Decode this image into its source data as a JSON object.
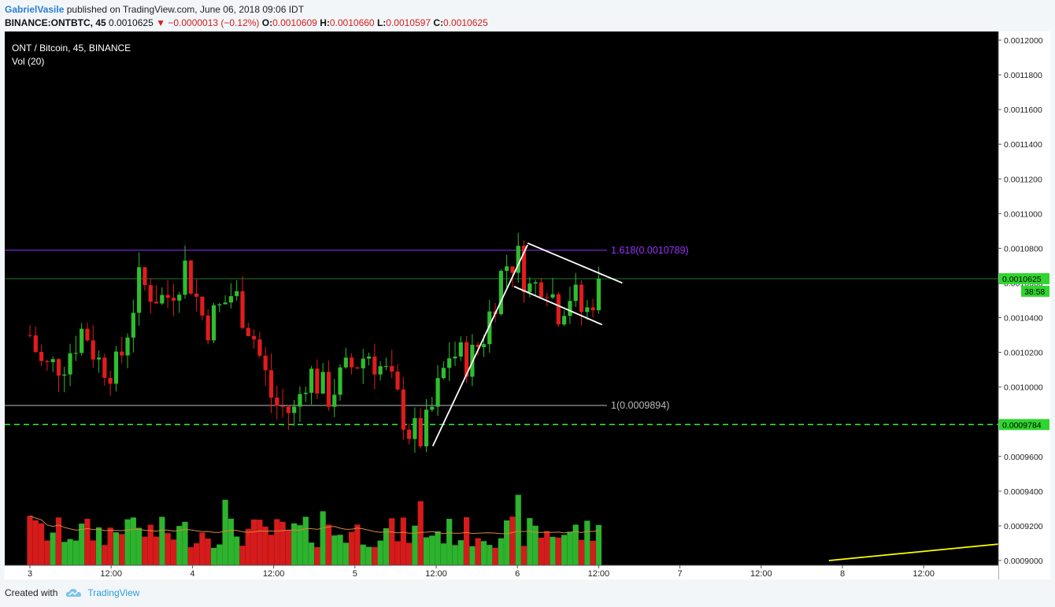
{
  "header": {
    "author": "GabrielVasile",
    "published": "published on TradingView.com, June 06, 2018 09:06 IDT",
    "symbol": "BINANCE:ONTBTC, 45",
    "last": "0.0010625",
    "change": "−0.0000013 (−0.12%)",
    "o_label": "O:",
    "o_value": "0.0010609",
    "h_label": "H:",
    "h_value": "0.0010660",
    "l_label": "L:",
    "l_value": "0.0010597",
    "c_label": "C:",
    "c_value": "0.0010625"
  },
  "legend": {
    "title": "ONT / Bitcoin, 45, BINANCE",
    "volume": "Vol (20)"
  },
  "footer": {
    "created_with": "Created with",
    "brand": "TradingView"
  },
  "colors": {
    "up": "#2fbd2f",
    "down": "#e01c1c",
    "background": "#000000",
    "fib_1618": "#9b30ff",
    "fib_1": "#bbbbbb",
    "dashed_support": "#33ee33",
    "trendline": "#ffff00"
  },
  "chart_data": {
    "type": "candlestick",
    "y_ticks": [
      "0.0012000",
      "0.0011800",
      "0.0011600",
      "0.0011400",
      "0.0011200",
      "0.0011000",
      "0.0010800",
      "0.0010600",
      "0.0010400",
      "0.0010200",
      "0.0010000",
      "0.0009800",
      "0.0009600",
      "0.0009400",
      "0.0009200",
      "0.0009000"
    ],
    "ylim": [
      0.0009,
      0.0012
    ],
    "x_ticks": [
      {
        "label": "3",
        "t": 0
      },
      {
        "label": "12:00",
        "t": 12
      },
      {
        "label": "4",
        "t": 24
      },
      {
        "label": "12:00",
        "t": 36
      },
      {
        "label": "5",
        "t": 48
      },
      {
        "label": "12:00",
        "t": 60
      },
      {
        "label": "6",
        "t": 72
      },
      {
        "label": "12:00",
        "t": 84
      },
      {
        "label": "7",
        "t": 96
      },
      {
        "label": "12:00",
        "t": 108
      },
      {
        "label": "8",
        "t": 120
      },
      {
        "label": "12:00",
        "t": 132
      }
    ],
    "price_tags": [
      {
        "label": "0.0010625",
        "value": 0.0010625,
        "kind": "last"
      },
      {
        "label": "38:58",
        "kind": "countdown"
      },
      {
        "label": "0.0009784",
        "value": 0.0009784,
        "kind": "support"
      }
    ],
    "levels": [
      {
        "label": "1.618(0.0010789)",
        "value": 0.0010789,
        "kind": "fib_1618"
      },
      {
        "label": "1(0.0009894)",
        "value": 0.0009894,
        "kind": "fib_1"
      },
      {
        "value": 0.0009784,
        "kind": "dashed_support"
      },
      {
        "value": 0.0010625,
        "kind": "last_price"
      }
    ],
    "candle_count": 100,
    "ohlc_anchors": [
      {
        "t": 0,
        "close": 0.00103
      },
      {
        "t": 2,
        "close": 0.00101
      },
      {
        "t": 5,
        "close": 0.001015
      },
      {
        "t": 8,
        "close": 0.001035
      },
      {
        "t": 10,
        "close": 0.001015
      },
      {
        "t": 13,
        "close": 0.00101
      },
      {
        "t": 16,
        "close": 0.00106
      },
      {
        "t": 20,
        "close": 0.00105
      },
      {
        "t": 23,
        "close": 0.00107
      },
      {
        "t": 26,
        "close": 0.001035
      },
      {
        "t": 30,
        "close": 0.001055
      },
      {
        "t": 33,
        "close": 0.00103
      },
      {
        "t": 36,
        "close": 0.00099
      },
      {
        "t": 39,
        "close": 0.000985
      },
      {
        "t": 41,
        "close": 0.00101
      },
      {
        "t": 44,
        "close": 0.000995
      },
      {
        "t": 47,
        "close": 0.00101
      },
      {
        "t": 50,
        "close": 0.00102
      },
      {
        "t": 53,
        "close": 0.001005
      },
      {
        "t": 56,
        "close": 0.000975
      },
      {
        "t": 58,
        "close": 0.00097
      },
      {
        "t": 60,
        "close": 0.000995
      },
      {
        "t": 62,
        "close": 0.00102
      },
      {
        "t": 65,
        "close": 0.001015
      },
      {
        "t": 67,
        "close": 0.00103
      },
      {
        "t": 70,
        "close": 0.00107
      },
      {
        "t": 72,
        "close": 0.001075
      },
      {
        "t": 74,
        "close": 0.001055
      },
      {
        "t": 76,
        "close": 0.001065
      },
      {
        "t": 78,
        "close": 0.001045
      },
      {
        "t": 80,
        "close": 0.001055
      },
      {
        "t": 82,
        "close": 0.00104
      },
      {
        "t": 84,
        "close": 0.0010625
      }
    ],
    "drawings": [
      {
        "kind": "impulse_line",
        "from": {
          "t": 59.5,
          "value": 0.000966
        },
        "to": {
          "t": 73.5,
          "value": 0.001082
        }
      },
      {
        "kind": "channel_top",
        "from": {
          "t": 73.5,
          "value": 0.001083
        },
        "to": {
          "t": 87.5,
          "value": 0.00106
        }
      },
      {
        "kind": "channel_bottom",
        "from": {
          "t": 71.5,
          "value": 0.001058
        },
        "to": {
          "t": 84.5,
          "value": 0.001036
        }
      },
      {
        "kind": "yellow_trend",
        "from": {
          "t": 118,
          "value": 0.0009
        },
        "to": {
          "t": 147,
          "value": 0.000911
        }
      }
    ]
  }
}
